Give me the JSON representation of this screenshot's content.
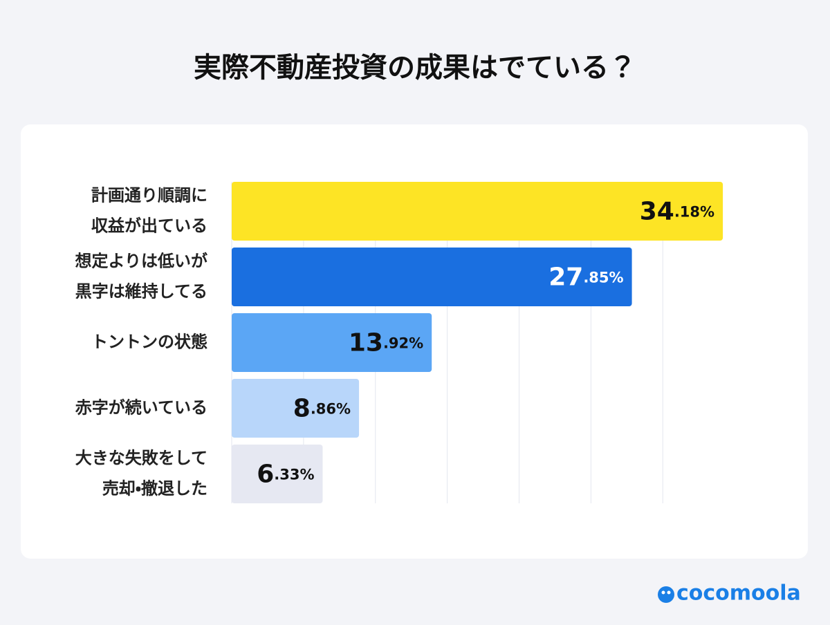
{
  "chart_data": {
    "type": "bar",
    "orientation": "horizontal",
    "title": "実際不動産投資の成果はでている？",
    "categories": [
      [
        "計画通り順調に",
        "収益が出ている"
      ],
      [
        "想定よりは低いが",
        "黒字は維持してる"
      ],
      [
        "トントンの状態"
      ],
      [
        "赤字が続いている"
      ],
      [
        "大きな失敗をして",
        "売却・撤退した"
      ]
    ],
    "values": [
      34.18,
      27.85,
      13.92,
      8.86,
      6.33
    ],
    "value_labels": [
      "34.18%",
      "27.85%",
      "13.92%",
      "8.86%",
      "6.33%"
    ],
    "colors": [
      "#fde425",
      "#1a6fe0",
      "#5ba6f5",
      "#b8d6fa",
      "#e6e8f2"
    ],
    "value_label_colors": [
      "#111111",
      "#ffffff",
      "#111111",
      "#111111",
      "#111111"
    ],
    "xlim": [
      0,
      40
    ],
    "xticks": [
      0,
      5,
      10,
      15,
      20,
      25,
      30
    ],
    "grid": true
  },
  "footer": {
    "brand": "cocomoola"
  }
}
